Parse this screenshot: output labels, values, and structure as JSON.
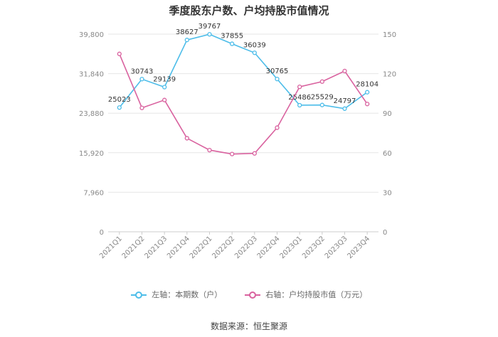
{
  "chart_data": {
    "type": "line",
    "title": "季度股东户数、户均持股市值情况",
    "categories": [
      "2021Q1",
      "2021Q2",
      "2021Q3",
      "2021Q4",
      "2022Q1",
      "2022Q2",
      "2022Q3",
      "2022Q4",
      "2023Q1",
      "2023Q2",
      "2023Q3",
      "2023Q4"
    ],
    "series": [
      {
        "name": "左轴：本期数（户）",
        "axis": "left",
        "color": "#4dbde9",
        "values": [
          25023,
          30743,
          29139,
          38627,
          39767,
          37855,
          36039,
          30765,
          25486,
          25529,
          24797,
          28104
        ],
        "labels": [
          "25023",
          "30743",
          "29139",
          "38627",
          "39767",
          "37855",
          "36039",
          "30765",
          "25486",
          "25529",
          "24797",
          "28104"
        ]
      },
      {
        "name": "右轴：户均持股市值（万元）",
        "axis": "right",
        "color": "#d9629f",
        "values": [
          135,
          94,
          100,
          71,
          62,
          59,
          59.5,
          79,
          110,
          114,
          122,
          97
        ]
      }
    ],
    "left_axis": {
      "min": 0,
      "max": 39800,
      "ticks": [
        "0",
        "7,960",
        "15,920",
        "23,880",
        "31,840",
        "39,800"
      ]
    },
    "right_axis": {
      "min": 0,
      "max": 150,
      "ticks": [
        "0",
        "30",
        "60",
        "90",
        "120",
        "150"
      ]
    },
    "grid": true,
    "legend_position": "bottom"
  },
  "footer": {
    "source": "数据来源：恒生聚源"
  }
}
